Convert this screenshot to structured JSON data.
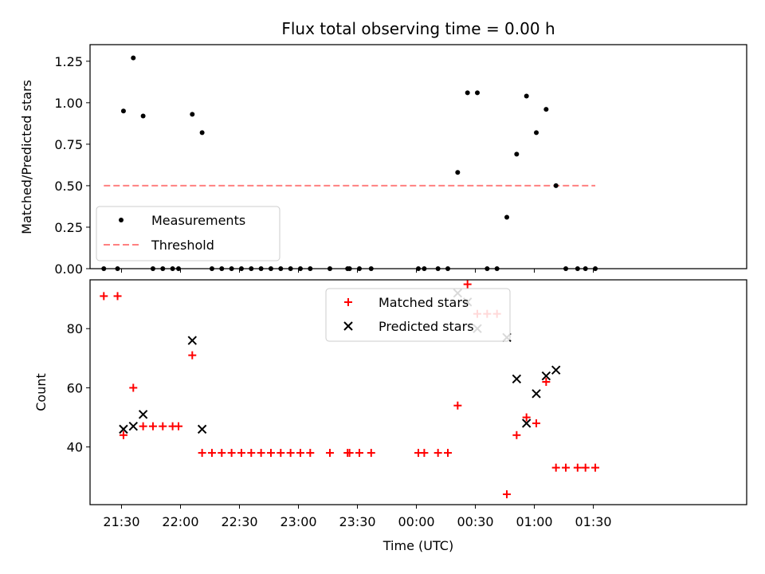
{
  "chart_data": [
    {
      "type": "scatter",
      "title": "Flux total observing time = 0.00 h",
      "xlabel": "",
      "ylabel": "Matched/Predicted stars",
      "ylim": [
        0,
        1.35
      ],
      "yticks": [
        "0.00",
        "0.25",
        "0.50",
        "0.75",
        "1.00",
        "1.25"
      ],
      "series": [
        {
          "name": "Measurements",
          "color": "#000000",
          "marker": "dot",
          "points": [
            [
              "21:21",
              0.0
            ],
            [
              "21:28",
              0.0
            ],
            [
              "21:31",
              0.95
            ],
            [
              "21:36",
              1.27
            ],
            [
              "21:41",
              0.92
            ],
            [
              "21:46",
              0.0
            ],
            [
              "21:51",
              0.0
            ],
            [
              "21:56",
              0.0
            ],
            [
              "21:59",
              0.0
            ],
            [
              "22:06",
              0.93
            ],
            [
              "22:11",
              0.82
            ],
            [
              "22:16",
              0.0
            ],
            [
              "22:21",
              0.0
            ],
            [
              "22:26",
              0.0
            ],
            [
              "22:31",
              0.0
            ],
            [
              "22:36",
              0.0
            ],
            [
              "22:41",
              0.0
            ],
            [
              "22:46",
              0.0
            ],
            [
              "22:51",
              0.0
            ],
            [
              "22:56",
              0.0
            ],
            [
              "23:01",
              0.0
            ],
            [
              "23:06",
              0.0
            ],
            [
              "23:16",
              0.0
            ],
            [
              "23:25",
              0.0
            ],
            [
              "23:26",
              0.0
            ],
            [
              "23:31",
              0.0
            ],
            [
              "23:37",
              0.0
            ],
            [
              "00:01",
              0.0
            ],
            [
              "00:04",
              0.0
            ],
            [
              "00:11",
              0.0
            ],
            [
              "00:16",
              0.0
            ],
            [
              "00:21",
              0.58
            ],
            [
              "00:26",
              1.06
            ],
            [
              "00:31",
              1.06
            ],
            [
              "00:36",
              0.0
            ],
            [
              "00:41",
              0.0
            ],
            [
              "00:46",
              0.31
            ],
            [
              "00:51",
              0.69
            ],
            [
              "00:56",
              1.04
            ],
            [
              "01:01",
              0.82
            ],
            [
              "01:06",
              0.96
            ],
            [
              "01:11",
              0.5
            ],
            [
              "01:16",
              0.0
            ],
            [
              "01:22",
              0.0
            ],
            [
              "01:26",
              0.0
            ],
            [
              "01:31",
              0.0
            ]
          ]
        },
        {
          "name": "Threshold",
          "color": "#ff8080",
          "style": "dashed",
          "points": [
            [
              "21:21",
              0.5
            ],
            [
              "01:31",
              0.5
            ]
          ]
        }
      ],
      "legend": "lower-left",
      "grid": false
    },
    {
      "type": "scatter",
      "xlabel": "Time (UTC)",
      "ylabel": "Count",
      "ylim": [
        20.5,
        96.5
      ],
      "yticks": [
        "40",
        "60",
        "80"
      ],
      "xticks": [
        "21:30",
        "22:00",
        "22:30",
        "23:00",
        "23:30",
        "00:00",
        "00:30",
        "01:00",
        "01:30"
      ],
      "series": [
        {
          "name": "Matched stars",
          "color": "#ff0000",
          "marker": "plus",
          "points": [
            [
              "21:21",
              91
            ],
            [
              "21:28",
              91
            ],
            [
              "21:31",
              44
            ],
            [
              "21:36",
              60
            ],
            [
              "21:41",
              47
            ],
            [
              "21:46",
              47
            ],
            [
              "21:51",
              47
            ],
            [
              "21:56",
              47
            ],
            [
              "21:59",
              47
            ],
            [
              "22:06",
              71
            ],
            [
              "22:11",
              38
            ],
            [
              "22:16",
              38
            ],
            [
              "22:21",
              38
            ],
            [
              "22:26",
              38
            ],
            [
              "22:31",
              38
            ],
            [
              "22:36",
              38
            ],
            [
              "22:41",
              38
            ],
            [
              "22:46",
              38
            ],
            [
              "22:51",
              38
            ],
            [
              "22:56",
              38
            ],
            [
              "23:01",
              38
            ],
            [
              "23:06",
              38
            ],
            [
              "23:16",
              38
            ],
            [
              "23:25",
              38
            ],
            [
              "23:26",
              38
            ],
            [
              "23:31",
              38
            ],
            [
              "23:37",
              38
            ],
            [
              "00:01",
              38
            ],
            [
              "00:04",
              38
            ],
            [
              "00:11",
              38
            ],
            [
              "00:16",
              38
            ],
            [
              "00:21",
              54
            ],
            [
              "00:26",
              95
            ],
            [
              "00:31",
              85
            ],
            [
              "00:36",
              85
            ],
            [
              "00:41",
              85
            ],
            [
              "00:46",
              24
            ],
            [
              "00:51",
              44
            ],
            [
              "00:56",
              50
            ],
            [
              "01:01",
              48
            ],
            [
              "01:06",
              62
            ],
            [
              "01:11",
              33
            ],
            [
              "01:16",
              33
            ],
            [
              "01:22",
              33
            ],
            [
              "01:26",
              33
            ],
            [
              "01:31",
              33
            ]
          ]
        },
        {
          "name": "Predicted stars",
          "color": "#000000",
          "marker": "x",
          "points": [
            [
              "21:31",
              46
            ],
            [
              "21:36",
              47
            ],
            [
              "21:41",
              51
            ],
            [
              "22:06",
              76
            ],
            [
              "22:11",
              46
            ],
            [
              "00:21",
              92
            ],
            [
              "00:26",
              89
            ],
            [
              "00:31",
              80
            ],
            [
              "00:46",
              77
            ],
            [
              "00:51",
              63
            ],
            [
              "00:56",
              48
            ],
            [
              "01:01",
              58
            ],
            [
              "01:06",
              64
            ],
            [
              "01:11",
              66
            ]
          ]
        }
      ],
      "legend": "upper-center",
      "grid": false
    }
  ]
}
